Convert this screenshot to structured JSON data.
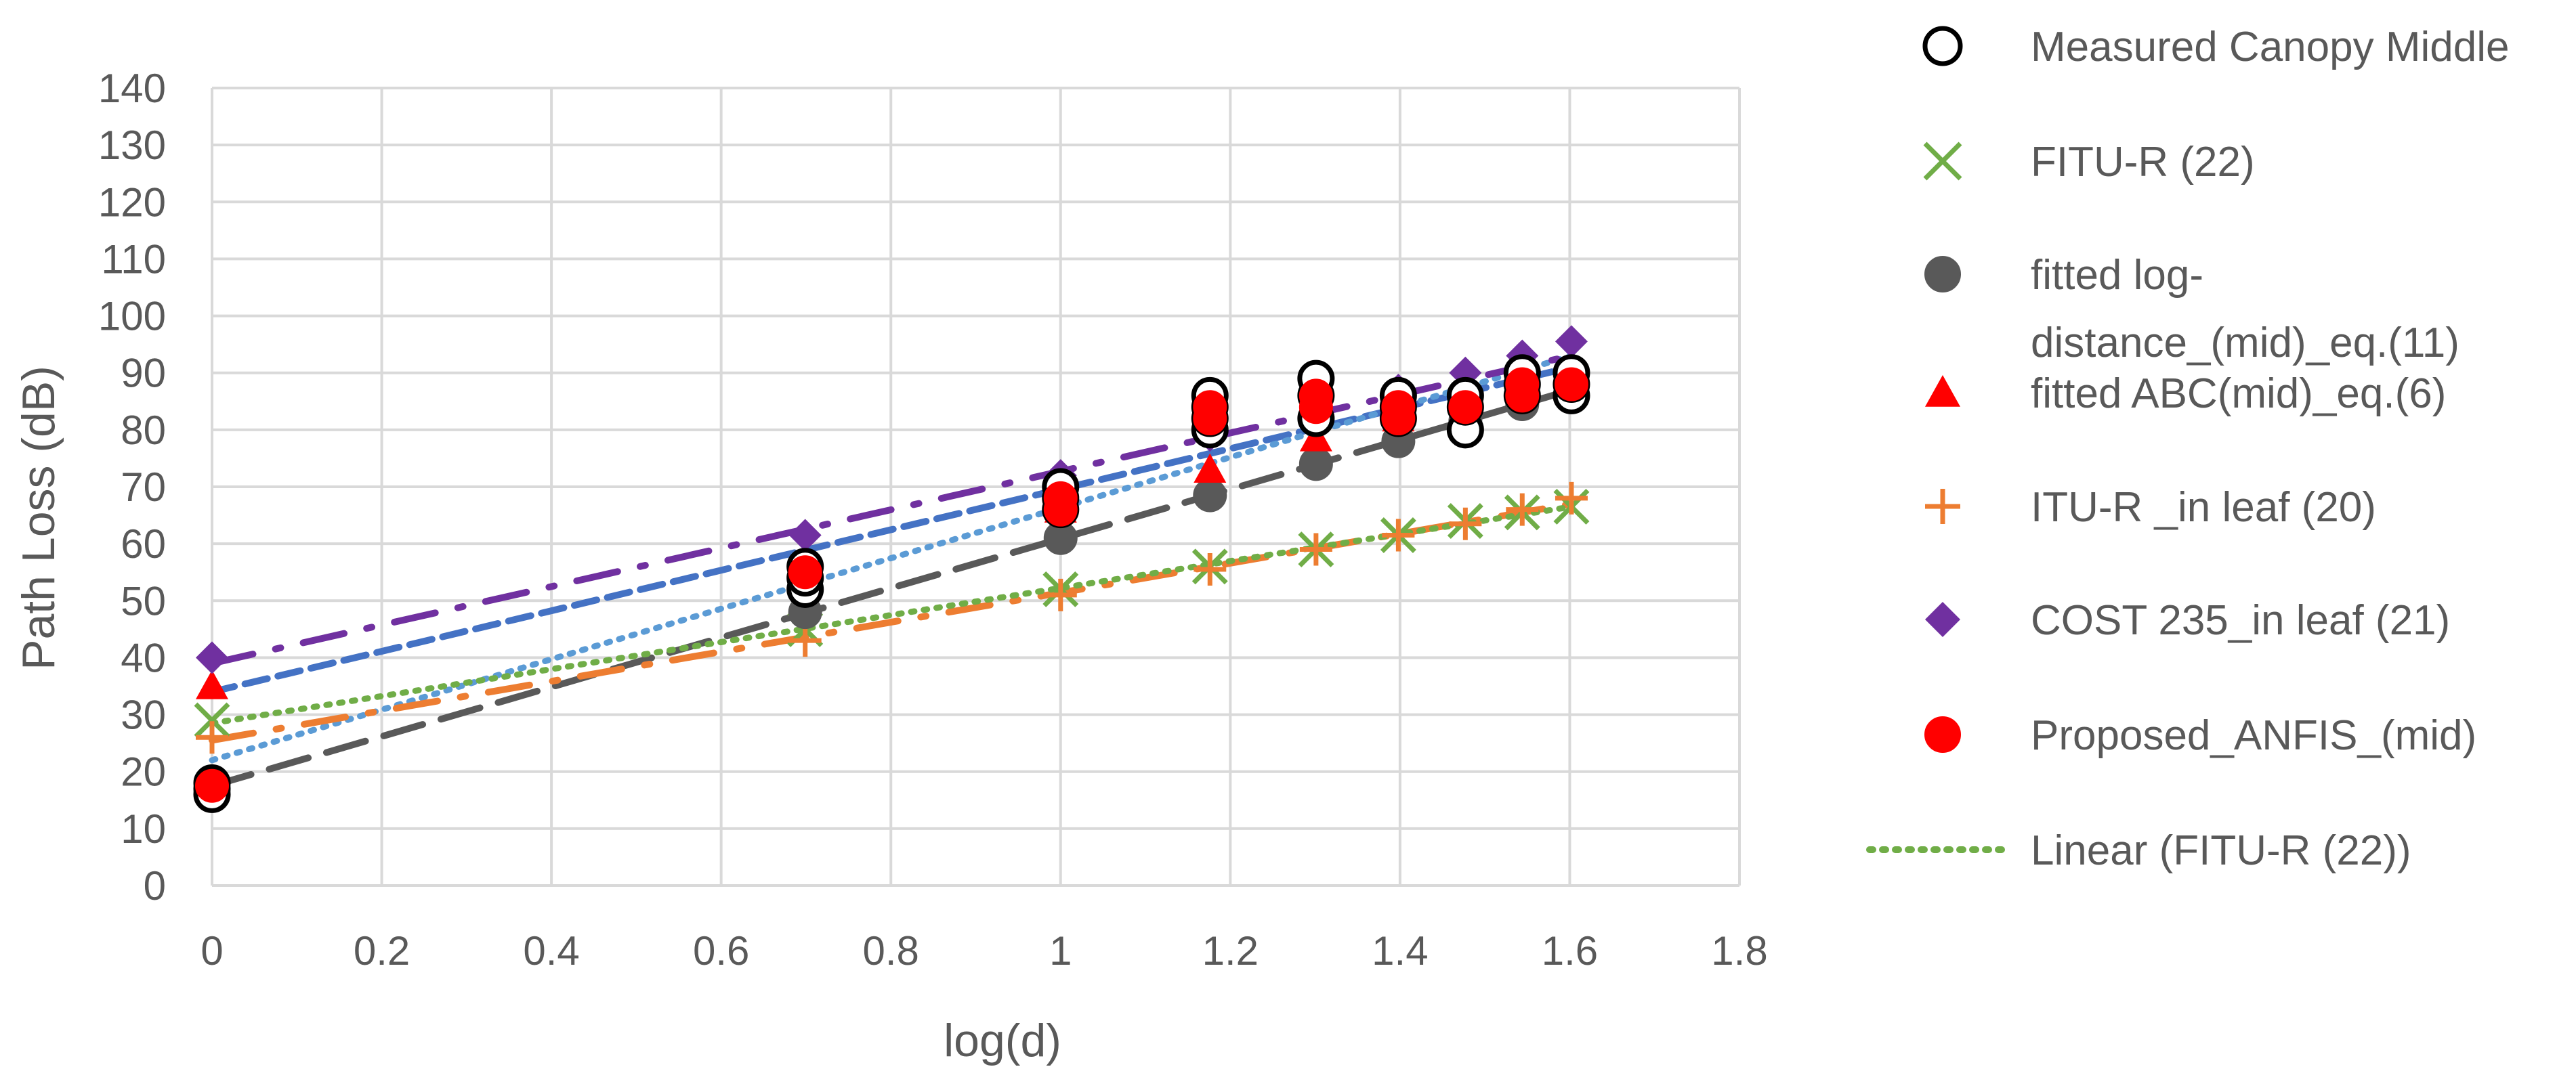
{
  "chart_data": {
    "type": "scatter",
    "xlabel": "log(d)",
    "ylabel": "Path Loss (dB)",
    "xlim": [
      0,
      1.8
    ],
    "ylim": [
      0,
      140
    ],
    "xticks": [
      "0",
      "0.2",
      "0.4",
      "0.6",
      "0.8",
      "1",
      "1.2",
      "1.4",
      "1.6",
      "1.8"
    ],
    "yticks": [
      "0",
      "10",
      "20",
      "30",
      "40",
      "50",
      "60",
      "70",
      "80",
      "90",
      "100",
      "110",
      "120",
      "130",
      "140"
    ],
    "grid": true,
    "legend_position": "right",
    "series": [
      {
        "name": "Measured Canopy Middle",
        "marker": "open-circle",
        "color": "#000000",
        "points": [
          [
            0,
            17
          ],
          [
            0,
            18
          ],
          [
            0,
            16
          ],
          [
            0.699,
            52
          ],
          [
            0.699,
            54
          ],
          [
            0.699,
            56
          ],
          [
            1,
            66
          ],
          [
            1,
            68
          ],
          [
            1,
            70
          ],
          [
            1.176,
            80
          ],
          [
            1.176,
            82
          ],
          [
            1.176,
            84
          ],
          [
            1.176,
            86
          ],
          [
            1.301,
            82
          ],
          [
            1.301,
            86
          ],
          [
            1.301,
            89
          ],
          [
            1.398,
            82
          ],
          [
            1.398,
            84
          ],
          [
            1.398,
            86
          ],
          [
            1.477,
            80
          ],
          [
            1.477,
            84
          ],
          [
            1.477,
            86
          ],
          [
            1.544,
            86
          ],
          [
            1.544,
            88
          ],
          [
            1.544,
            90
          ],
          [
            1.602,
            86
          ],
          [
            1.602,
            88
          ],
          [
            1.602,
            90
          ]
        ]
      },
      {
        "name": "FITU-R (22)",
        "marker": "x",
        "color": "#70ad47",
        "points": [
          [
            0,
            29
          ],
          [
            0.699,
            45
          ],
          [
            1,
            52
          ],
          [
            1.176,
            56
          ],
          [
            1.301,
            59
          ],
          [
            1.398,
            61.5
          ],
          [
            1.477,
            64
          ],
          [
            1.544,
            65.5
          ],
          [
            1.602,
            66.5
          ]
        ]
      },
      {
        "name": "fitted log-distance_(mid)_eq.(11)",
        "legend_lines": [
          "fitted log-",
          "distance_(mid)_eq.(11)"
        ],
        "marker": "filled-circle",
        "color": "#595959",
        "points": [
          [
            0,
            17.5
          ],
          [
            0.699,
            48
          ],
          [
            1,
            61
          ],
          [
            1.176,
            68.5
          ],
          [
            1.301,
            74
          ],
          [
            1.398,
            78
          ],
          [
            1.477,
            81.5
          ],
          [
            1.544,
            84.5
          ],
          [
            1.602,
            86.5
          ]
        ]
      },
      {
        "name": "fitted ABC(mid)_eq.(6)",
        "marker": "triangle",
        "color": "#ff0000",
        "points": [
          [
            0,
            35
          ],
          [
            0.699,
            55
          ],
          [
            1,
            66
          ],
          [
            1.176,
            73
          ],
          [
            1.301,
            78.5
          ],
          [
            1.398,
            82
          ],
          [
            1.477,
            85
          ],
          [
            1.544,
            87.5
          ],
          [
            1.602,
            89.5
          ]
        ]
      },
      {
        "name": "ITU-R _in leaf (20)",
        "marker": "plus",
        "color": "#ed7d31",
        "points": [
          [
            0,
            26
          ],
          [
            0.699,
            43
          ],
          [
            1,
            51
          ],
          [
            1.176,
            55.5
          ],
          [
            1.301,
            59
          ],
          [
            1.398,
            61.5
          ],
          [
            1.477,
            63.5
          ],
          [
            1.544,
            66
          ],
          [
            1.602,
            68
          ]
        ]
      },
      {
        "name": "COST 235_in leaf (21)",
        "marker": "diamond",
        "color": "#7030a0",
        "points": [
          [
            0,
            40
          ],
          [
            0.699,
            61.5
          ],
          [
            1,
            72
          ],
          [
            1.176,
            79
          ],
          [
            1.301,
            84
          ],
          [
            1.398,
            87
          ],
          [
            1.477,
            90
          ],
          [
            1.544,
            93
          ],
          [
            1.602,
            95.5
          ]
        ]
      },
      {
        "name": "Proposed_ANFIS_(mid)",
        "marker": "filled-circle",
        "color": "#ff0000",
        "points": [
          [
            0,
            17.5
          ],
          [
            0.699,
            55
          ],
          [
            1,
            66
          ],
          [
            1,
            68
          ],
          [
            1.176,
            82
          ],
          [
            1.176,
            84
          ],
          [
            1.301,
            84
          ],
          [
            1.301,
            86
          ],
          [
            1.398,
            82
          ],
          [
            1.398,
            84
          ],
          [
            1.477,
            84
          ],
          [
            1.544,
            86
          ],
          [
            1.544,
            88
          ],
          [
            1.602,
            88
          ]
        ]
      },
      {
        "name": "Linear (FITU-R (22))",
        "marker": "none",
        "line": "dotted",
        "color": "#70ad47",
        "endpoints": [
          [
            0,
            28.5
          ],
          [
            1.602,
            66.5
          ]
        ]
      }
    ],
    "unlabeled_trendlines": [
      {
        "color": "#595959",
        "dash": "long-dash",
        "endpoints": [
          [
            0,
            17.5
          ],
          [
            1.602,
            87
          ]
        ]
      },
      {
        "color": "#4472c4",
        "dash": "dash",
        "endpoints": [
          [
            0,
            34
          ],
          [
            1.602,
            91
          ]
        ]
      },
      {
        "color": "#5b9bd5",
        "dash": "dotted",
        "endpoints": [
          [
            0,
            22
          ],
          [
            1.602,
            93
          ]
        ]
      },
      {
        "color": "#ed7d31",
        "dash": "long-dash-dot",
        "endpoints": [
          [
            0,
            25.5
          ],
          [
            1.602,
            67
          ]
        ]
      },
      {
        "color": "#7030a0",
        "dash": "long-dash-dot",
        "endpoints": [
          [
            0,
            39
          ],
          [
            1.602,
            93
          ]
        ]
      }
    ]
  }
}
